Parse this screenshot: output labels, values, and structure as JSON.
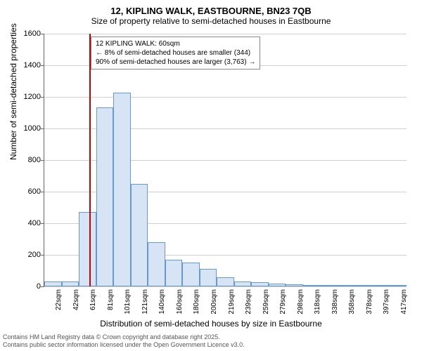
{
  "title_main": "12, KIPLING WALK, EASTBOURNE, BN23 7QB",
  "title_sub": "Size of property relative to semi-detached houses in Eastbourne",
  "y_axis": {
    "label": "Number of semi-detached properties",
    "min": 0,
    "max": 1600,
    "ticks": [
      0,
      200,
      400,
      600,
      800,
      1000,
      1200,
      1400,
      1600
    ]
  },
  "x_axis": {
    "label": "Distribution of semi-detached houses by size in Eastbourne",
    "tick_labels": [
      "22sqm",
      "42sqm",
      "61sqm",
      "81sqm",
      "101sqm",
      "121sqm",
      "140sqm",
      "160sqm",
      "180sqm",
      "200sqm",
      "219sqm",
      "239sqm",
      "259sqm",
      "279sqm",
      "298sqm",
      "318sqm",
      "338sqm",
      "358sqm",
      "378sqm",
      "397sqm",
      "417sqm"
    ]
  },
  "histogram": {
    "type": "histogram",
    "bar_fill": "#d6e4f5",
    "bar_border": "#6699cc",
    "background_color": "#ffffff",
    "grid_color": "#d0d0d0",
    "values": [
      30,
      30,
      470,
      1135,
      1225,
      650,
      280,
      170,
      150,
      110,
      60,
      30,
      25,
      20,
      15,
      10,
      8,
      5,
      4,
      3,
      2
    ],
    "bar_count": 21
  },
  "marker": {
    "color": "#cc0000",
    "position_index": 2.6
  },
  "annotation": {
    "line1": "12 KIPLING WALK: 60sqm",
    "line2": "← 8% of semi-detached houses are smaller (344)",
    "line3": "90% of semi-detached houses are larger (3,763) →"
  },
  "footer": {
    "line1": "Contains HM Land Registry data © Crown copyright and database right 2025.",
    "line2": "Contains public sector information licensed under the Open Government Licence v3.0."
  }
}
